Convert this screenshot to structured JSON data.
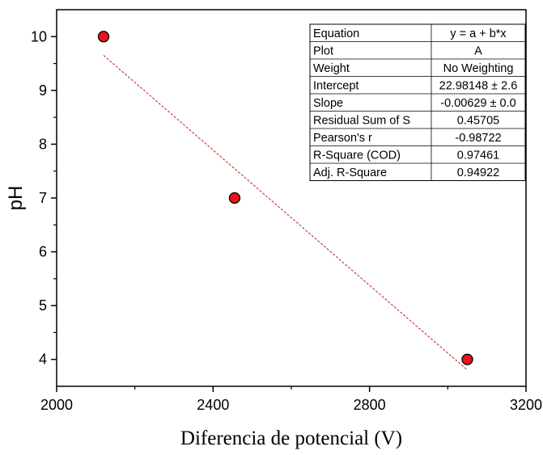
{
  "chart_data": {
    "type": "scatter",
    "xlabel": "Diferencia de potencial (V)",
    "ylabel": "pH",
    "xlim": [
      2000,
      3200
    ],
    "ylim": [
      3.5,
      10.5
    ],
    "x_ticks": [
      2000,
      2400,
      2800,
      3200
    ],
    "y_ticks": [
      4,
      5,
      6,
      7,
      8,
      9,
      10
    ],
    "grid": false,
    "series": [
      {
        "points": [
          {
            "x": 2120,
            "y": 10
          },
          {
            "x": 2455,
            "y": 7
          },
          {
            "x": 3050,
            "y": 4
          }
        ],
        "marker_color": "#e8141b"
      }
    ],
    "fit_line": {
      "x_range": [
        2120,
        3050
      ],
      "color": "#c84040",
      "style": "dashed"
    },
    "stats_table": {
      "position": "top-right",
      "rows": [
        [
          "Equation",
          "y = a + b*x"
        ],
        [
          "Plot",
          "A"
        ],
        [
          "Weight",
          "No Weighting"
        ],
        [
          "Intercept",
          "22.98148 ± 2.6"
        ],
        [
          "Slope",
          "-0.00629 ± 0.0"
        ],
        [
          "Residual Sum of S",
          "0.45705"
        ],
        [
          "Pearson's r",
          "-0.98722"
        ],
        [
          "R-Square (COD)",
          "0.97461"
        ],
        [
          "Adj. R-Square",
          "0.94922"
        ]
      ]
    }
  }
}
